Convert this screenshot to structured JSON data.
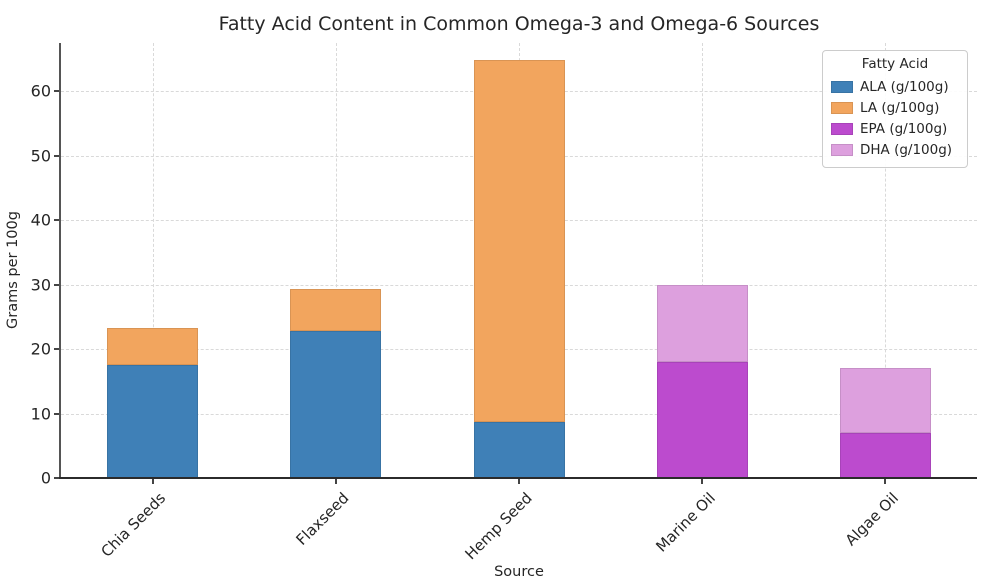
{
  "chart_data": {
    "type": "bar",
    "stacked": true,
    "title": "Fatty Acid Content in Common Omega-3 and Omega-6 Sources",
    "xlabel": "Source",
    "ylabel": "Grams per 100g",
    "categories": [
      "Chia Seeds",
      "Flaxseed",
      "Hemp Seed",
      "Marine Oil",
      "Algae Oil"
    ],
    "series": [
      {
        "name": "ALA (g/100g)",
        "color": "#3f80b7",
        "values": [
          17.5,
          22.8,
          8.7,
          0,
          0
        ]
      },
      {
        "name": "LA (g/100g)",
        "color": "#f2a55e",
        "values": [
          5.8,
          6.5,
          56.1,
          0,
          0
        ]
      },
      {
        "name": "EPA (g/100g)",
        "color": "#bc4bce",
        "values": [
          0,
          0,
          0,
          18,
          7
        ]
      },
      {
        "name": "DHA (g/100g)",
        "color": "#dda0de",
        "values": [
          0,
          0,
          0,
          12,
          10
        ]
      }
    ],
    "totals": [
      23.3,
      29.3,
      64.8,
      30,
      17
    ],
    "legend": {
      "title": "Fatty Acid",
      "position": "upper right"
    },
    "yticks": [
      0,
      10,
      20,
      30,
      40,
      50,
      60
    ],
    "ylim": [
      0,
      67.5
    ],
    "grid": true,
    "grid_style": "dashed"
  }
}
